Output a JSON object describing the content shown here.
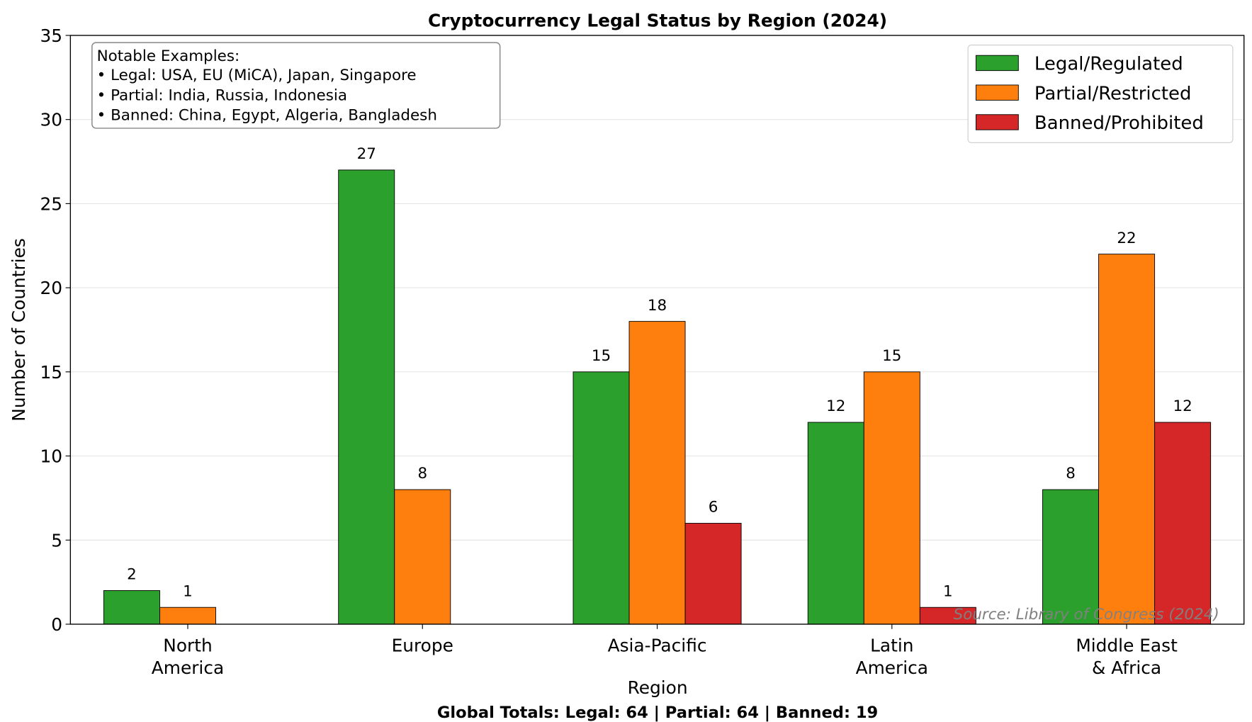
{
  "chart_data": {
    "type": "bar",
    "title": "Cryptocurrency Legal Status by Region (2024)",
    "xlabel": "Region",
    "ylabel": "Number of Countries",
    "ylim": [
      0,
      35
    ],
    "yticks": [
      0,
      5,
      10,
      15,
      20,
      25,
      30,
      35
    ],
    "grid": "y",
    "legend_position": "top-right",
    "categories": [
      [
        "North",
        "America"
      ],
      [
        "Europe"
      ],
      [
        "Asia-Pacific"
      ],
      [
        "Latin",
        "America"
      ],
      [
        "Middle East",
        "& Africa"
      ]
    ],
    "series": [
      {
        "name": "Legal/Regulated",
        "color": "#2ca02c",
        "values": [
          2,
          27,
          15,
          12,
          8
        ]
      },
      {
        "name": "Partial/Restricted",
        "color": "#ff7f0e",
        "values": [
          1,
          8,
          18,
          15,
          22
        ]
      },
      {
        "name": "Banned/Prohibited",
        "color": "#d62728",
        "values": [
          0,
          0,
          6,
          1,
          12
        ]
      }
    ],
    "annotation_box": {
      "lines": [
        "Notable Examples:",
        "• Legal: USA, EU (MiCA), Japan, Singapore",
        "• Partial: India, Russia, Indonesia",
        "• Banned: China, Egypt, Algeria, Bangladesh"
      ]
    },
    "source": "Source: Library of Congress (2024)",
    "footer": "Global Totals: Legal: 64 | Partial: 64 | Banned: 19"
  }
}
